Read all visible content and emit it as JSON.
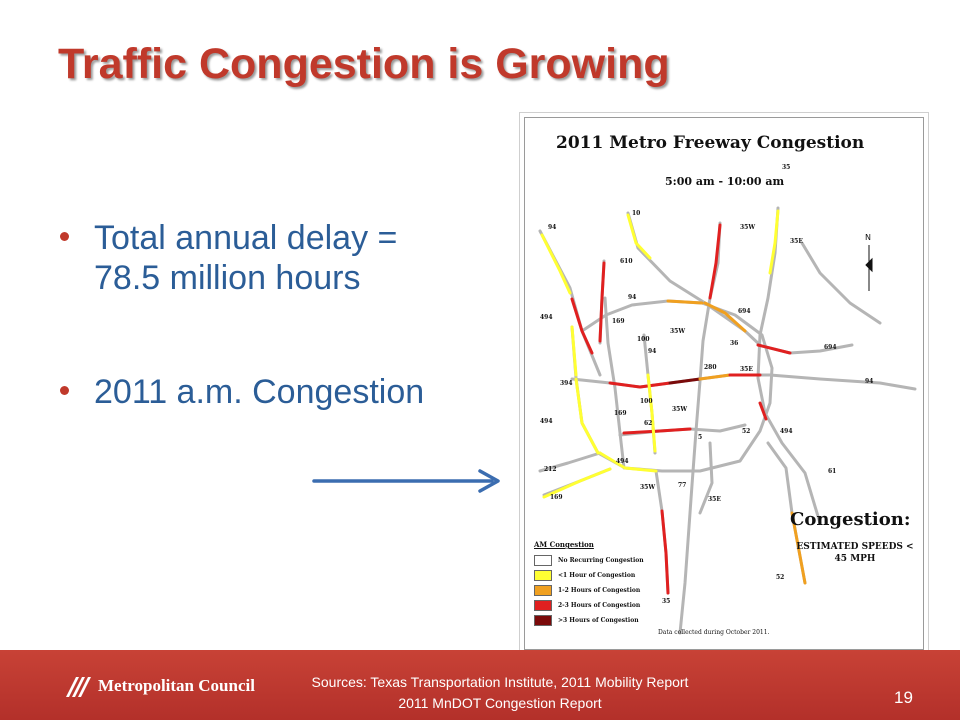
{
  "slide": {
    "title": "Traffic Congestion is Growing",
    "bullets": [
      "Total annual delay = 78.5 million hours",
      "2011 a.m. Congestion"
    ],
    "bullet_color": "#c0392b",
    "title_color": "#c0392b",
    "text_color": "#2b5d97",
    "arrow_color": "#3b6db0"
  },
  "map": {
    "title": "2011 Metro Freeway Congestion",
    "time_range": "5:00 am - 10:00 am",
    "north_label": "N",
    "congestion_heading": "Congestion:",
    "congestion_subtext": "ESTIMATED SPEEDS < 45 MPH",
    "legend": {
      "title": "AM Congestion",
      "items": [
        {
          "label": "No Recurring Congestion",
          "color": "#ffffff"
        },
        {
          "label": "<1 Hour of Congestion",
          "color": "#ffff33"
        },
        {
          "label": "1-2 Hours of Congestion",
          "color": "#f0a020"
        },
        {
          "label": "2-3 Hours of Congestion",
          "color": "#e02020"
        },
        {
          "label": ">3 Hours of Congestion",
          "color": "#7a0a0a"
        }
      ]
    },
    "data_note": "Data collected during October 2011.",
    "route_labels": [
      "35",
      "10",
      "94",
      "35W",
      "35E",
      "610",
      "94",
      "694",
      "494",
      "169",
      "100",
      "35W",
      "36",
      "694",
      "94",
      "280",
      "35E",
      "394",
      "94",
      "100",
      "35W",
      "494",
      "169",
      "62",
      "52",
      "494",
      "5",
      "212",
      "494",
      "61",
      "169",
      "35W",
      "77",
      "35E",
      "52",
      "35"
    ]
  },
  "footer": {
    "logo_text": "Metropolitan Council",
    "sources_line1": "Sources: Texas Transportation Institute, 2011 Mobility Report",
    "sources_line2": "2011 MnDOT Congestion Report",
    "page_number": "19",
    "background_color": "#b6342a"
  }
}
